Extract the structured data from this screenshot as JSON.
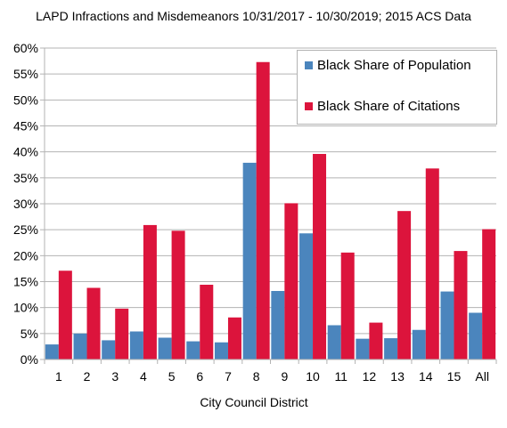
{
  "chart_data": {
    "type": "bar",
    "title": "LAPD Infractions and Misdemeanors 10/31/2017 - 10/30/2019; 2015 ACS Data",
    "xlabel": "City Council District",
    "ylabel": "",
    "ylim": [
      0,
      60
    ],
    "yticks": [
      "0%",
      "5%",
      "10%",
      "15%",
      "20%",
      "25%",
      "30%",
      "35%",
      "40%",
      "45%",
      "50%",
      "55%",
      "60%"
    ],
    "categories": [
      "1",
      "2",
      "3",
      "4",
      "5",
      "6",
      "7",
      "8",
      "9",
      "10",
      "11",
      "12",
      "13",
      "14",
      "15",
      "All"
    ],
    "series": [
      {
        "name": "Black Share of Population",
        "color": "#4b85bd",
        "values": [
          2.9,
          5.0,
          3.7,
          5.4,
          4.2,
          3.5,
          3.3,
          37.9,
          13.2,
          24.3,
          6.6,
          4.0,
          4.1,
          5.7,
          13.1,
          9.0
        ]
      },
      {
        "name": "Black Share of Citations",
        "color": "#dc143c",
        "values": [
          17.1,
          13.8,
          9.8,
          25.9,
          24.8,
          14.4,
          8.1,
          57.3,
          30.1,
          39.6,
          20.6,
          7.1,
          28.6,
          36.8,
          20.9,
          25.1
        ]
      }
    ],
    "grid": true,
    "legend_position": "top-right"
  }
}
